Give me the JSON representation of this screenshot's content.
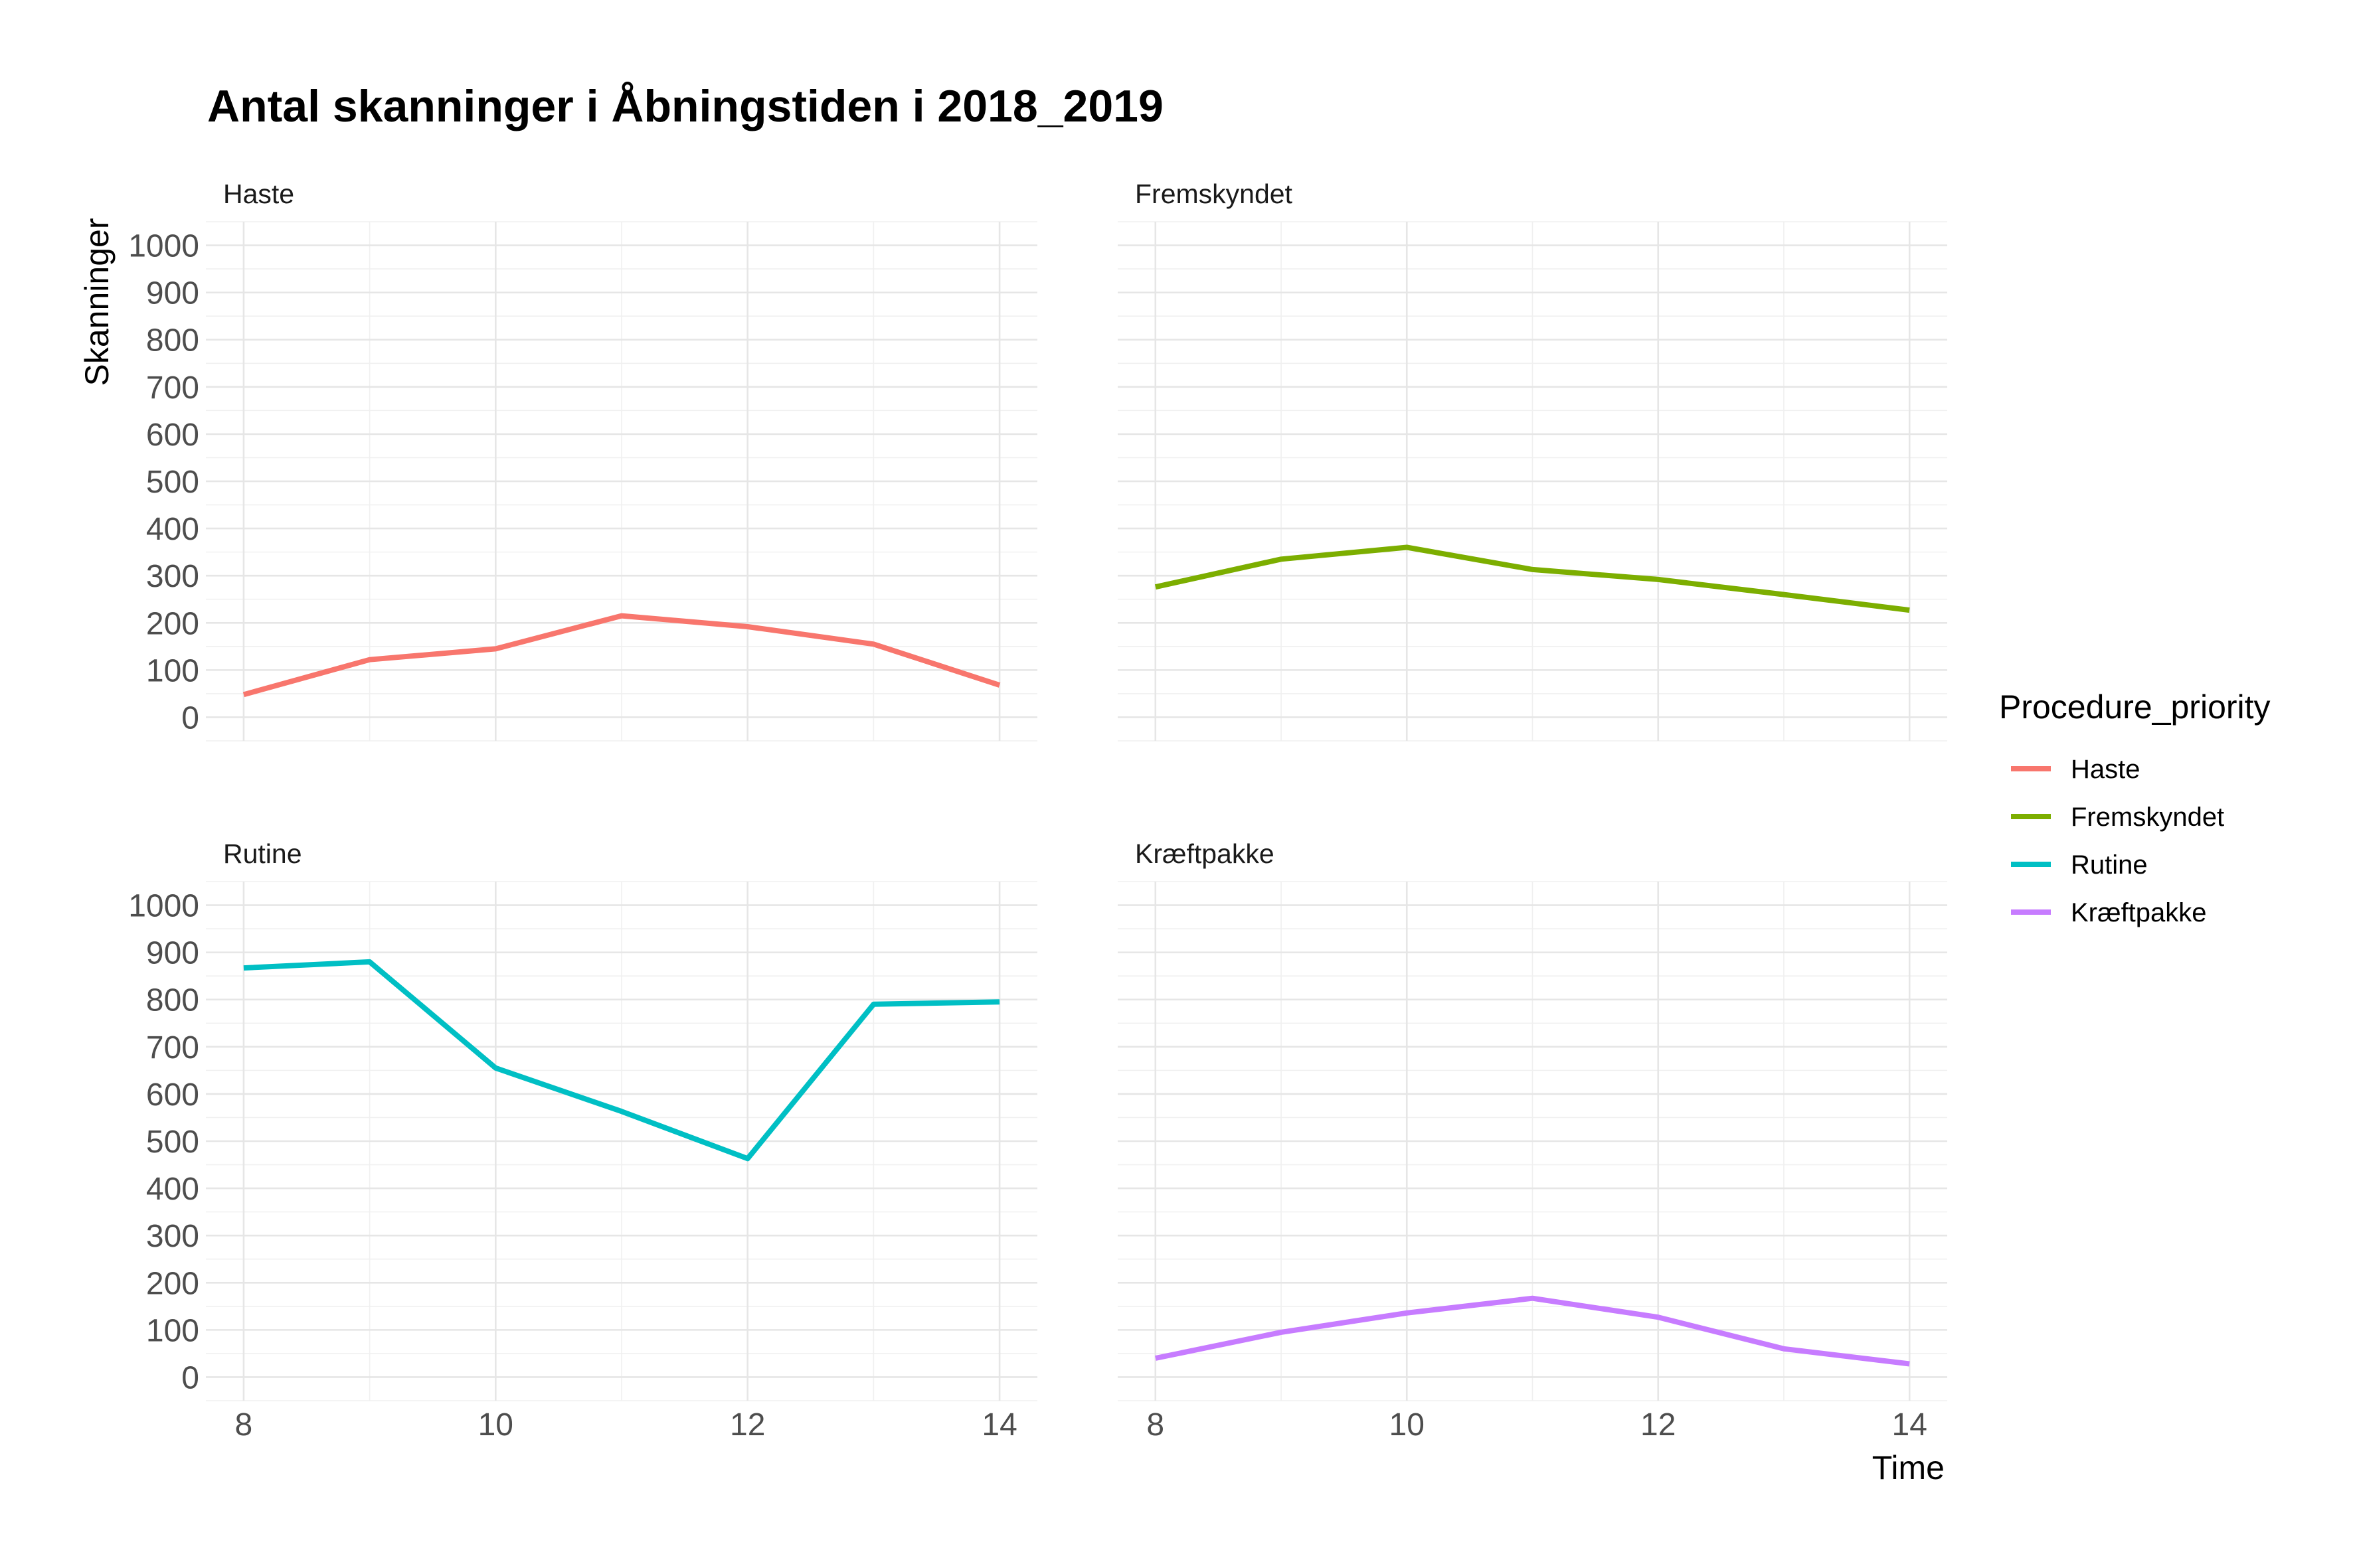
{
  "chart_data": {
    "type": "line",
    "title": "Antal skanninger i Åbningstiden i 2018_2019",
    "xlabel": "Time",
    "ylabel": "Skanninger",
    "x": [
      8,
      9,
      10,
      11,
      12,
      13,
      14
    ],
    "x_ticks": [
      8,
      10,
      12,
      14
    ],
    "y_ticks": [
      0,
      100,
      200,
      300,
      400,
      500,
      600,
      700,
      800,
      900,
      1000
    ],
    "xlim": [
      7.7,
      14.3
    ],
    "ylim": [
      -50,
      1050
    ],
    "grid": true,
    "legend": {
      "title": "Procedure_priority",
      "position": "right"
    },
    "series": [
      {
        "name": "Haste",
        "color": "#F8766D",
        "values": [
          48,
          122,
          145,
          215,
          192,
          155,
          68
        ]
      },
      {
        "name": "Fremskyndet",
        "color": "#7CAE00",
        "values": [
          276,
          335,
          360,
          313,
          292,
          260,
          227
        ]
      },
      {
        "name": "Rutine",
        "color": "#00BFC4",
        "values": [
          867,
          880,
          655,
          563,
          463,
          790,
          795
        ]
      },
      {
        "name": "Kræftpakke",
        "color": "#C77CFF",
        "values": [
          40,
          95,
          136,
          167,
          127,
          60,
          28
        ]
      }
    ]
  }
}
